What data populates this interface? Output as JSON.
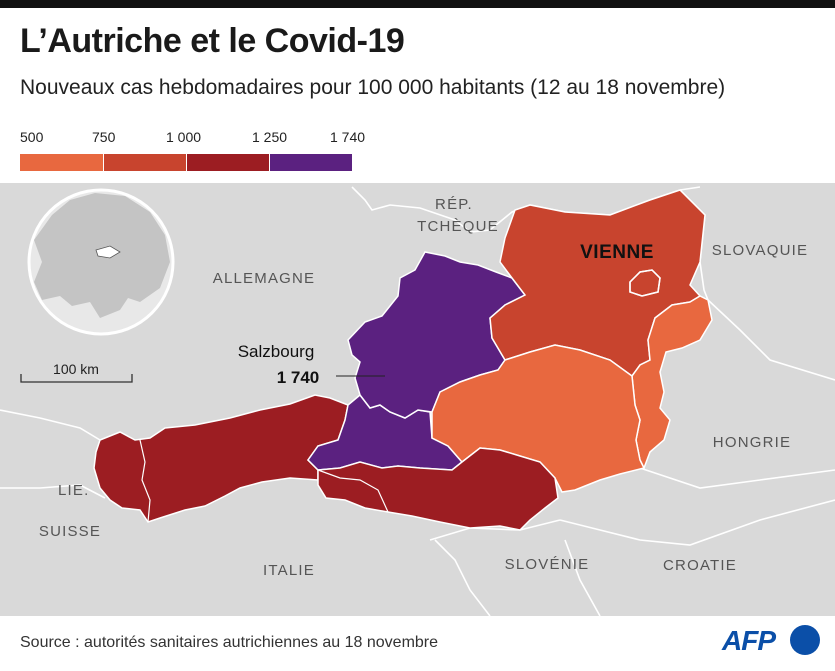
{
  "title": "L’Autriche et le Covid-19",
  "subtitle": "Nouveaux cas hebdomadaires pour 100 000 habitants (12 au 18 novembre)",
  "legend": {
    "ticks": [
      "500",
      "750",
      "1 000",
      "1 250",
      "1 740"
    ],
    "colors": [
      "#e8683f",
      "#c8442e",
      "#9c1d22",
      "#5b2180"
    ]
  },
  "map": {
    "countries": {
      "rep": "RÉP.",
      "tcheque": "TCHÈQUE",
      "allemagne": "ALLEMAGNE",
      "slovaquie": "SLOVAQUIE",
      "hongrie": "HONGRIE",
      "lie": "LIE.",
      "suisse": "SUISSE",
      "italie": "ITALIE",
      "slovenie": "SLOVÉNIE",
      "croatie": "CROATIE"
    },
    "vienne": "VIENNE",
    "salzbourg_name": "Salzbourg",
    "salzbourg_value": "1 740",
    "scale": "100 km",
    "colors": {
      "sea": "#ffffff",
      "land": "#d9d9d9",
      "border": "#ffffff",
      "band_500_750": "#e8683f",
      "band_750_1000": "#c8442e",
      "band_1000_1250": "#9c1d22",
      "band_1250_1740": "#5b2180"
    }
  },
  "source": "Source : autorités sanitaires autrichiennes au 18 novembre",
  "logo": "AFP"
}
